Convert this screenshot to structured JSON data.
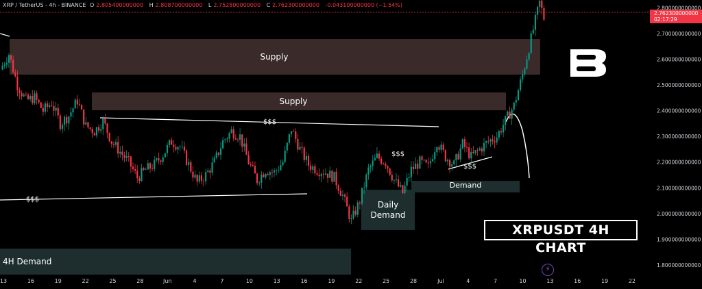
{
  "header": {
    "symbol": "XRP / TetherUS - 4h - BINANCE",
    "o_label": "O",
    "o_value": "2.805400000000",
    "h_label": "H",
    "h_value": "2.808700000000",
    "l_label": "L",
    "l_value": "2.752800000000",
    "c_label": "C",
    "c_value": "2.762300000000",
    "change": "-0.043100000000 (−1.54%)"
  },
  "current_price": {
    "value": "2.762300000000",
    "countdown": "02:17:29"
  },
  "title_box": "XRPUSDT 4H CHART",
  "zones": {
    "supply_upper": "Supply",
    "supply_lower": "Supply",
    "demand_right": "Demand",
    "daily_demand": "Daily\nDemand",
    "demand_4h": "4H Demand"
  },
  "liquidity_labels": {
    "left": "$$$",
    "top_trend": "$$$",
    "mid": "$$$",
    "right": "$$$"
  },
  "colors": {
    "background": "#000000",
    "bull_candle": "#089981",
    "bear_candle": "#f23645",
    "supply_zone": "#3a2a2a",
    "demand_zone": "#1e2e2e",
    "price_tag": "#f23645"
  },
  "icons": {
    "logo": "b-brand-logo",
    "replay": "lightning-icon"
  },
  "chart_data": {
    "type": "candlestick",
    "title": "",
    "y_axis": {
      "ticks": [
        "2.800000000000",
        "2.700000000000",
        "2.600000000000",
        "2.500000000000",
        "2.400000000000",
        "2.300000000000",
        "2.200000000000",
        "2.100000000000",
        "2.000000000000",
        "1.900000000000",
        "1.800000000000"
      ],
      "range": [
        1.76,
        2.83
      ]
    },
    "x_axis": {
      "ticks": [
        "13",
        "16",
        "19",
        "22",
        "25",
        "28",
        "Jun",
        "4",
        "7",
        "10",
        "13",
        "16",
        "19",
        "22",
        "25",
        "28",
        "Jul",
        "4",
        "7",
        "10",
        "13",
        "16",
        "19",
        "22"
      ]
    },
    "price_path": [
      [
        0,
        2.56
      ],
      [
        4,
        2.62
      ],
      [
        8,
        2.5
      ],
      [
        12,
        2.44
      ],
      [
        16,
        2.45
      ],
      [
        20,
        2.4
      ],
      [
        24,
        2.43
      ],
      [
        28,
        2.35
      ],
      [
        32,
        2.38
      ],
      [
        36,
        2.44
      ],
      [
        40,
        2.34
      ],
      [
        44,
        2.32
      ],
      [
        48,
        2.36
      ],
      [
        52,
        2.28
      ],
      [
        56,
        2.24
      ],
      [
        60,
        2.2
      ],
      [
        64,
        2.14
      ],
      [
        68,
        2.17
      ],
      [
        72,
        2.19
      ],
      [
        76,
        2.23
      ],
      [
        80,
        2.28
      ],
      [
        84,
        2.26
      ],
      [
        88,
        2.19
      ],
      [
        92,
        2.12
      ],
      [
        96,
        2.15
      ],
      [
        100,
        2.2
      ],
      [
        104,
        2.28
      ],
      [
        108,
        2.32
      ],
      [
        112,
        2.3
      ],
      [
        116,
        2.2
      ],
      [
        120,
        2.13
      ],
      [
        124,
        2.17
      ],
      [
        128,
        2.16
      ],
      [
        132,
        2.2
      ],
      [
        136,
        2.33
      ],
      [
        140,
        2.25
      ],
      [
        144,
        2.19
      ],
      [
        148,
        2.17
      ],
      [
        152,
        2.16
      ],
      [
        156,
        2.14
      ],
      [
        160,
        2.07
      ],
      [
        164,
        1.97
      ],
      [
        168,
        2.05
      ],
      [
        172,
        2.17
      ],
      [
        176,
        2.22
      ],
      [
        180,
        2.2
      ],
      [
        184,
        2.13
      ],
      [
        188,
        2.08
      ],
      [
        192,
        2.17
      ],
      [
        196,
        2.2
      ],
      [
        200,
        2.18
      ],
      [
        204,
        2.28
      ],
      [
        208,
        2.22
      ],
      [
        212,
        2.19
      ],
      [
        216,
        2.27
      ],
      [
        220,
        2.22
      ],
      [
        224,
        2.25
      ],
      [
        228,
        2.28
      ],
      [
        232,
        2.3
      ],
      [
        236,
        2.36
      ],
      [
        240,
        2.42
      ],
      [
        244,
        2.54
      ],
      [
        248,
        2.68
      ],
      [
        252,
        2.82
      ],
      [
        254,
        2.76
      ]
    ],
    "current": 2.7623
  }
}
